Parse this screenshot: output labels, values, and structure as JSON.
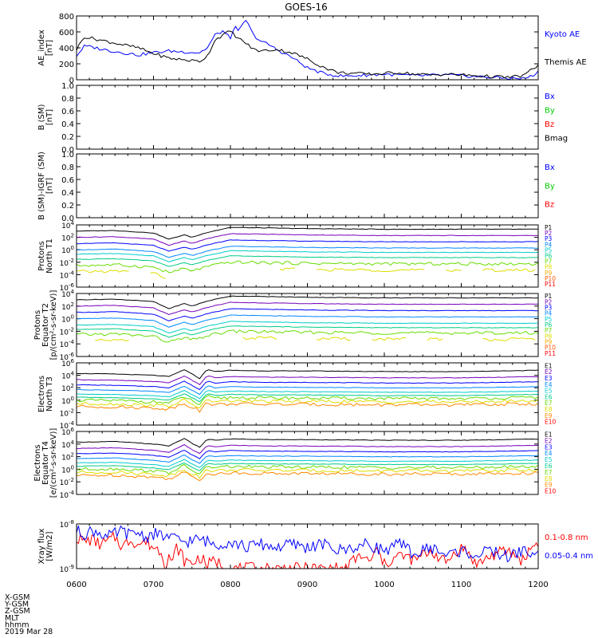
{
  "title": "GOES-16",
  "x_axis": {
    "ticks": [
      "0600",
      "0700",
      "0800",
      "0900",
      "1000",
      "1100",
      "1200"
    ],
    "range": [
      "06:00",
      "12:00"
    ],
    "footer_labels": [
      "X-GSM",
      "Y-GSM",
      "Z-GSM",
      "MLT",
      "hhmm",
      "2019 Mar 28"
    ]
  },
  "chart_data": [
    {
      "type": "line",
      "name": "ae",
      "ylabel": [
        "AE_index",
        "[nT]"
      ],
      "ylim": [
        0,
        800
      ],
      "yticks": [
        "0",
        "200",
        "400",
        "600",
        "800"
      ],
      "series": [
        {
          "name": "Kyoto AE",
          "color": "#0000ff",
          "x": [
            6.0,
            6.1,
            6.2,
            6.4,
            6.6,
            6.8,
            7.0,
            7.2,
            7.4,
            7.6,
            7.7,
            7.8,
            7.9,
            8.0,
            8.05,
            8.1,
            8.2,
            8.3,
            8.4,
            8.5,
            8.6,
            8.8,
            9.0,
            9.2,
            9.4,
            9.5,
            9.6,
            9.8,
            10.0,
            10.2,
            10.4,
            10.6,
            10.8,
            11.0,
            11.2,
            11.4,
            11.6,
            11.8,
            11.9,
            12.0
          ],
          "values": [
            300,
            420,
            410,
            370,
            340,
            310,
            340,
            360,
            350,
            340,
            400,
            560,
            610,
            520,
            680,
            600,
            750,
            560,
            480,
            440,
            380,
            280,
            150,
            80,
            50,
            45,
            50,
            60,
            70,
            60,
            50,
            55,
            60,
            50,
            40,
            30,
            20,
            15,
            40,
            100
          ]
        },
        {
          "name": "Themis AE",
          "color": "#000000",
          "x": [
            6.0,
            6.1,
            6.2,
            6.4,
            6.6,
            6.8,
            7.0,
            7.2,
            7.4,
            7.6,
            7.7,
            7.8,
            7.9,
            8.0,
            8.1,
            8.2,
            8.3,
            8.4,
            8.6,
            8.8,
            9.0,
            9.2,
            9.4,
            9.6,
            9.8,
            10.0,
            10.2,
            10.4,
            10.6,
            10.8,
            11.0,
            11.2,
            11.4,
            11.6,
            11.8,
            12.0
          ],
          "values": [
            380,
            540,
            520,
            480,
            440,
            400,
            330,
            270,
            250,
            230,
            300,
            500,
            560,
            610,
            520,
            460,
            380,
            360,
            380,
            340,
            260,
            160,
            90,
            80,
            70,
            80,
            90,
            70,
            60,
            70,
            60,
            50,
            40,
            30,
            50,
            180
          ]
        }
      ]
    },
    {
      "type": "line",
      "name": "bsm",
      "ylabel": [
        "B (SM)",
        "[nT]"
      ],
      "ylim": [
        0,
        1
      ],
      "yticks": [
        "0.0",
        "0.2",
        "0.4",
        "0.6",
        "0.8",
        "1.0"
      ],
      "series": [
        {
          "name": "Bx",
          "color": "#0000ff",
          "x": [],
          "values": []
        },
        {
          "name": "By",
          "color": "#00cc00",
          "x": [],
          "values": []
        },
        {
          "name": "Bz",
          "color": "#ff0000",
          "x": [],
          "values": []
        },
        {
          "name": "Bmag",
          "color": "#000000",
          "x": [],
          "values": []
        }
      ]
    },
    {
      "type": "line",
      "name": "bigrf",
      "ylabel": [
        "B (SM)-IGRF (SM)",
        "[nT]"
      ],
      "ylim": [
        0,
        1
      ],
      "yticks": [
        "0.0",
        "0.2",
        "0.4",
        "0.6",
        "0.8",
        "1.0"
      ],
      "series": [
        {
          "name": "Bx",
          "color": "#0000ff",
          "x": [],
          "values": []
        },
        {
          "name": "By",
          "color": "#00cc00",
          "x": [],
          "values": []
        },
        {
          "name": "Bz",
          "color": "#ff0000",
          "x": [],
          "values": []
        }
      ]
    },
    {
      "type": "line",
      "name": "protons_t1",
      "yscale": "log",
      "ylabel": [
        "Protons",
        "North T1"
      ],
      "ylim": [
        1e-06,
        10000.0
      ],
      "ytick_exponents": [
        -6,
        -4,
        -2,
        0,
        2,
        4
      ],
      "profile": {
        "x": [
          6.0,
          6.5,
          7.0,
          7.2,
          7.4,
          7.5,
          7.7,
          8.0,
          8.5,
          9.0,
          10.0,
          11.0,
          12.0
        ],
        "offset_decades": [
          0.0,
          0.1,
          -0.3,
          -1.3,
          -0.6,
          -1.0,
          -0.2,
          0.6,
          0.5,
          0.4,
          0.3,
          0.3,
          0.3
        ]
      },
      "series": [
        {
          "name": "P1",
          "color": "#000000",
          "level": 1000
        },
        {
          "name": "P2",
          "color": "#7700bb",
          "level": 100
        },
        {
          "name": "P3",
          "color": "#0000ff",
          "level": 10
        },
        {
          "name": "P4",
          "color": "#0088ff",
          "level": 1
        },
        {
          "name": "P5",
          "color": "#00cccc",
          "level": 0.2
        },
        {
          "name": "P6",
          "color": "#00cc88",
          "level": 0.03
        },
        {
          "name": "P7",
          "color": "#66dd00",
          "level": 0.003
        },
        {
          "name": "P8",
          "color": "#dddd00",
          "level": 0.0003
        },
        {
          "name": "P9",
          "color": "#ffaa00",
          "level": null
        },
        {
          "name": "P10",
          "color": "#ff5500",
          "level": null
        },
        {
          "name": "P11",
          "color": "#ff0000",
          "level": null
        }
      ]
    },
    {
      "type": "line",
      "name": "protons_t2",
      "yscale": "log",
      "ylabel": [
        "Protons",
        "Equator T2",
        "[p/(cm²-s-sr-keV)]"
      ],
      "ylim": [
        1e-06,
        10000.0
      ],
      "ytick_exponents": [
        -6,
        -4,
        -2,
        0,
        2,
        4
      ],
      "profile": {
        "x": [
          6.0,
          6.5,
          7.0,
          7.2,
          7.4,
          7.5,
          7.7,
          8.0,
          8.5,
          9.0,
          10.0,
          11.0,
          12.0
        ],
        "offset_decades": [
          0.0,
          0.1,
          -0.3,
          -1.4,
          -0.6,
          -1.0,
          -0.2,
          0.6,
          0.5,
          0.4,
          0.3,
          0.3,
          0.3
        ]
      },
      "series": [
        {
          "name": "P1",
          "color": "#000000",
          "level": 1000
        },
        {
          "name": "P2",
          "color": "#7700bb",
          "level": 100
        },
        {
          "name": "P3",
          "color": "#0000ff",
          "level": 10
        },
        {
          "name": "P4",
          "color": "#0088ff",
          "level": 1
        },
        {
          "name": "P5",
          "color": "#00cccc",
          "level": 0.1
        },
        {
          "name": "P6",
          "color": "#00cc88",
          "level": 0.02
        },
        {
          "name": "P7",
          "color": "#66dd00",
          "level": 0.003
        },
        {
          "name": "P8",
          "color": "#dddd00",
          "level": 0.0003
        },
        {
          "name": "P9",
          "color": "#ffaa00",
          "level": null
        },
        {
          "name": "P10",
          "color": "#ff5500",
          "level": null
        },
        {
          "name": "P11",
          "color": "#ff0000",
          "level": null
        }
      ]
    },
    {
      "type": "line",
      "name": "electrons_t3",
      "yscale": "log",
      "ylabel": [
        "Electrons",
        "North T3"
      ],
      "ylim": [
        0.0001,
        1000000.0
      ],
      "ytick_exponents": [
        -4,
        -2,
        0,
        2,
        4,
        6
      ],
      "profile": {
        "x": [
          6.0,
          6.5,
          7.0,
          7.2,
          7.4,
          7.5,
          7.6,
          7.7,
          7.8,
          8.0,
          8.5,
          9.0,
          10.0,
          11.0,
          12.0
        ],
        "offset_decades": [
          0.0,
          -0.1,
          -0.3,
          -0.5,
          0.6,
          -0.1,
          -0.8,
          0.7,
          0.3,
          0.5,
          0.4,
          0.4,
          0.3,
          0.3,
          0.5
        ]
      },
      "series": [
        {
          "name": "E1",
          "color": "#000000",
          "level": 20000
        },
        {
          "name": "E2",
          "color": "#7700bb",
          "level": 2000
        },
        {
          "name": "E3",
          "color": "#0000ff",
          "level": 300
        },
        {
          "name": "E4",
          "color": "#0088ff",
          "level": 50
        },
        {
          "name": "E5",
          "color": "#00cccc",
          "level": 10
        },
        {
          "name": "E6",
          "color": "#00cc88",
          "level": 3
        },
        {
          "name": "E7",
          "color": "#66dd00",
          "level": 1
        },
        {
          "name": "E8",
          "color": "#dddd00",
          "level": 0.3
        },
        {
          "name": "E9",
          "color": "#ff8800",
          "level": 0.1
        },
        {
          "name": "E10",
          "color": "#ff0000",
          "level": null
        }
      ]
    },
    {
      "type": "line",
      "name": "electrons_t4",
      "yscale": "log",
      "ylabel": [
        "Electrons",
        "Equator T4",
        "[e/(cm²-s-sr-keV)]"
      ],
      "ylim": [
        0.0001,
        1000000.0
      ],
      "ytick_exponents": [
        -4,
        -2,
        0,
        2,
        4,
        6
      ],
      "profile": {
        "x": [
          6.0,
          6.5,
          7.0,
          7.2,
          7.4,
          7.5,
          7.6,
          7.7,
          7.8,
          8.0,
          8.5,
          9.0,
          10.0,
          11.0,
          12.0
        ],
        "offset_decades": [
          0.0,
          0.1,
          -0.3,
          -0.6,
          0.6,
          -0.2,
          -0.8,
          0.5,
          0.3,
          0.5,
          0.4,
          0.4,
          0.3,
          0.3,
          0.5
        ]
      },
      "series": [
        {
          "name": "E1",
          "color": "#000000",
          "level": 20000
        },
        {
          "name": "E2",
          "color": "#7700bb",
          "level": 2000
        },
        {
          "name": "E3",
          "color": "#0000ff",
          "level": 300
        },
        {
          "name": "E4",
          "color": "#0088ff",
          "level": 50
        },
        {
          "name": "E5",
          "color": "#00cccc",
          "level": 10
        },
        {
          "name": "E6",
          "color": "#00cc88",
          "level": 3
        },
        {
          "name": "E7",
          "color": "#66dd00",
          "level": 1
        },
        {
          "name": "E8",
          "color": "#dddd00",
          "level": 0.3
        },
        {
          "name": "E9",
          "color": "#ff8800",
          "level": 0.1
        },
        {
          "name": "E10",
          "color": "#ff0000",
          "level": null
        }
      ]
    },
    {
      "type": "line",
      "name": "xray",
      "yscale": "log",
      "ylabel": [
        "Xray flux",
        "[W/m2]"
      ],
      "ylim": [
        1e-09,
        1e-08
      ],
      "ytick_exponents": [
        -9,
        -8
      ],
      "series": [
        {
          "name": "0.1-0.8 nm",
          "color": "#ff0000",
          "x": [
            6.0,
            6.1,
            6.2,
            6.3,
            6.4,
            6.5,
            6.6,
            6.7,
            6.8,
            6.9,
            7.0,
            7.1,
            7.15,
            7.2,
            7.25,
            7.3,
            7.4,
            7.5,
            7.6,
            7.7,
            7.8,
            7.9,
            8.0,
            9.0,
            9.5,
            9.6,
            9.7,
            9.8,
            9.9,
            10.0,
            10.2,
            10.4,
            10.6,
            10.8,
            11.0,
            11.2,
            11.4,
            11.6,
            11.8,
            12.0
          ],
          "values": [
            5e-09,
            4e-09,
            4.5e-09,
            3.5e-09,
            4e-09,
            5e-09,
            3e-09,
            4.5e-09,
            3.5e-09,
            4e-09,
            3e-09,
            2.5e-09,
            1.2e-09,
            2e-09,
            1.3e-09,
            3e-09,
            1.5e-09,
            1.3e-09,
            1.8e-09,
            1.2e-09,
            1.5e-09,
            1.2e-09,
            1e-09,
            1e-09,
            1e-09,
            1.5e-09,
            2e-09,
            1.3e-09,
            2.5e-09,
            1.2e-09,
            2e-09,
            1.5e-09,
            2.5e-09,
            1.3e-09,
            3e-09,
            1.2e-09,
            2e-09,
            2.5e-09,
            1.5e-09,
            4e-09
          ]
        },
        {
          "name": "0.05-0.4 nm",
          "color": "#0000ff",
          "x": [
            6.0,
            6.1,
            6.2,
            6.3,
            6.4,
            6.5,
            6.6,
            6.7,
            6.8,
            6.9,
            7.0,
            7.2,
            7.4,
            7.6,
            7.8,
            8.0,
            8.2,
            8.4,
            8.6,
            8.8,
            9.0,
            9.2,
            9.4,
            9.6,
            9.8,
            10.0,
            10.2,
            10.4,
            10.6,
            10.8,
            11.0,
            11.2,
            11.4,
            11.6,
            11.8,
            12.0
          ],
          "values": [
            7e-09,
            6e-09,
            7e-09,
            6.5e-09,
            5e-09,
            6e-09,
            7e-09,
            5.5e-09,
            6.5e-09,
            5e-09,
            6e-09,
            5e-09,
            4e-09,
            4.5e-09,
            3.5e-09,
            4e-09,
            3e-09,
            3.5e-09,
            3e-09,
            3.5e-09,
            3e-09,
            3.5e-09,
            2.5e-09,
            3e-09,
            3.5e-09,
            2.5e-09,
            3.5e-09,
            2e-09,
            3e-09,
            2e-09,
            2.5e-09,
            2e-09,
            2.5e-09,
            1.8e-09,
            2.5e-09,
            2e-09
          ]
        }
      ]
    }
  ]
}
